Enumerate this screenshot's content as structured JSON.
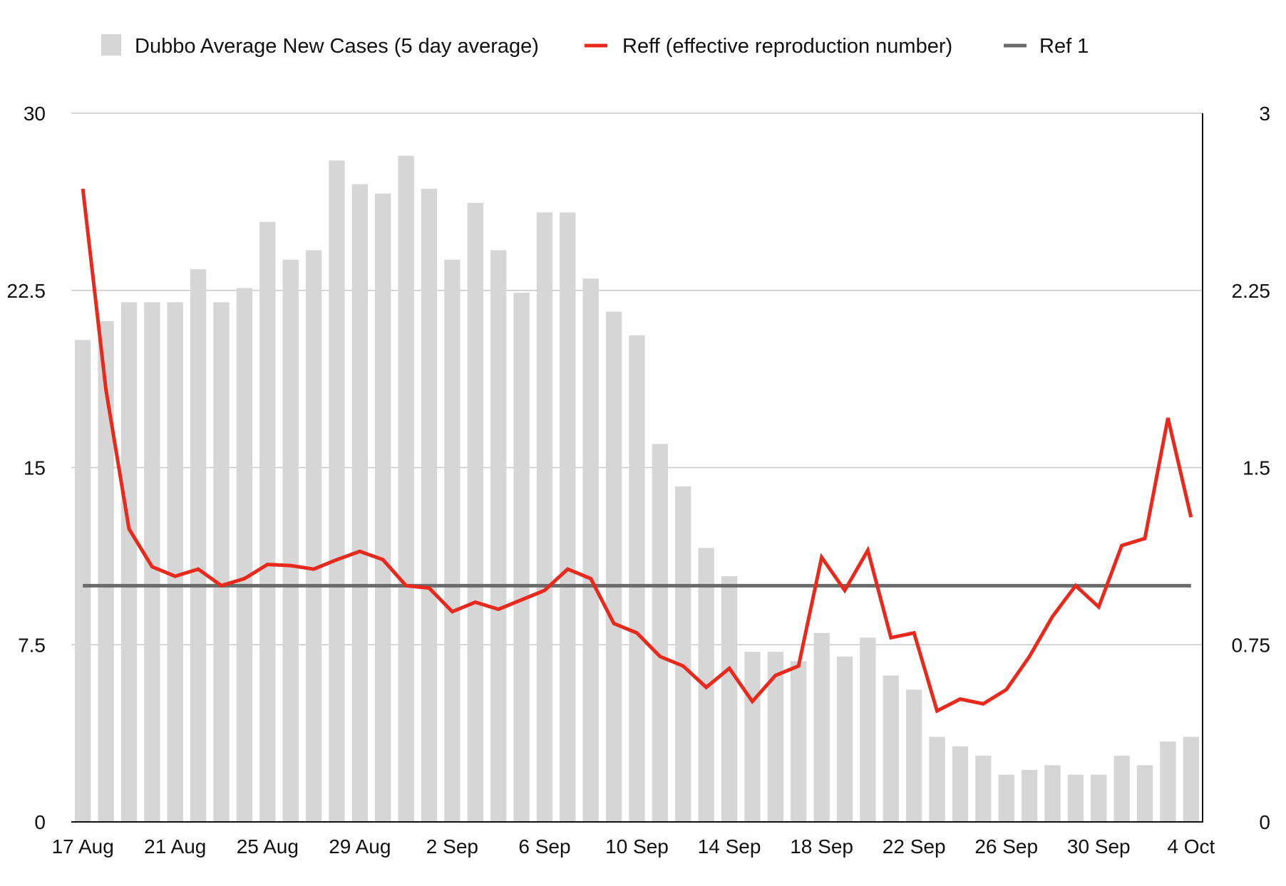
{
  "chart_data": {
    "type": "bar",
    "x_tick_labels": [
      "17 Aug",
      "21 Aug",
      "25 Aug",
      "29 Aug",
      "2 Sep",
      "6 Sep",
      "10 Sep",
      "14 Sep",
      "18 Sep",
      "22 Sep",
      "26 Sep",
      "30 Sep",
      "4 Oct"
    ],
    "left_axis": {
      "ylim": [
        0,
        30
      ],
      "ticks": [
        "0",
        "7.5",
        "15",
        "22.5",
        "30"
      ]
    },
    "right_axis": {
      "ylim": [
        0,
        3
      ],
      "ticks": [
        "0",
        "0.75",
        "1.5",
        "2.25",
        "3"
      ]
    },
    "grid": true,
    "legend_position": "top",
    "series": [
      {
        "name": "Dubbo Average New Cases (5 day average)",
        "type": "bar",
        "axis": "left",
        "color": "#d6d6d6",
        "values": [
          20.4,
          21.2,
          22.0,
          22.0,
          22.0,
          23.4,
          22.0,
          22.6,
          25.4,
          23.8,
          24.2,
          28.0,
          27.0,
          26.6,
          28.2,
          26.8,
          23.8,
          26.2,
          24.2,
          22.4,
          25.8,
          25.8,
          23.0,
          21.6,
          20.6,
          16.0,
          14.2,
          11.6,
          10.4,
          7.2,
          7.2,
          6.8,
          8.0,
          7.0,
          7.8,
          6.2,
          5.6,
          3.6,
          3.2,
          2.8,
          2.0,
          2.2,
          2.4,
          2.0,
          2.0,
          2.8,
          2.4,
          3.4,
          3.6
        ]
      },
      {
        "name": "Reff (effective reproduction number)",
        "type": "line",
        "axis": "right",
        "color": "#e8291c",
        "values": [
          2.68,
          1.83,
          1.24,
          1.08,
          1.04,
          1.07,
          1.0,
          1.03,
          1.09,
          1.085,
          1.07,
          1.11,
          1.145,
          1.11,
          1.0,
          0.99,
          0.89,
          0.93,
          0.9,
          0.94,
          0.98,
          1.07,
          1.03,
          0.84,
          0.8,
          0.7,
          0.66,
          0.57,
          0.65,
          0.51,
          0.62,
          0.66,
          1.12,
          0.98,
          1.15,
          0.78,
          0.8,
          0.47,
          0.52,
          0.5,
          0.56,
          0.7,
          0.87,
          1.0,
          0.91,
          1.17,
          1.2,
          1.71,
          1.29
        ]
      },
      {
        "name": "Ref 1",
        "type": "line",
        "axis": "right",
        "color": "#6b6b6b",
        "values": [
          1,
          1
        ]
      }
    ]
  }
}
